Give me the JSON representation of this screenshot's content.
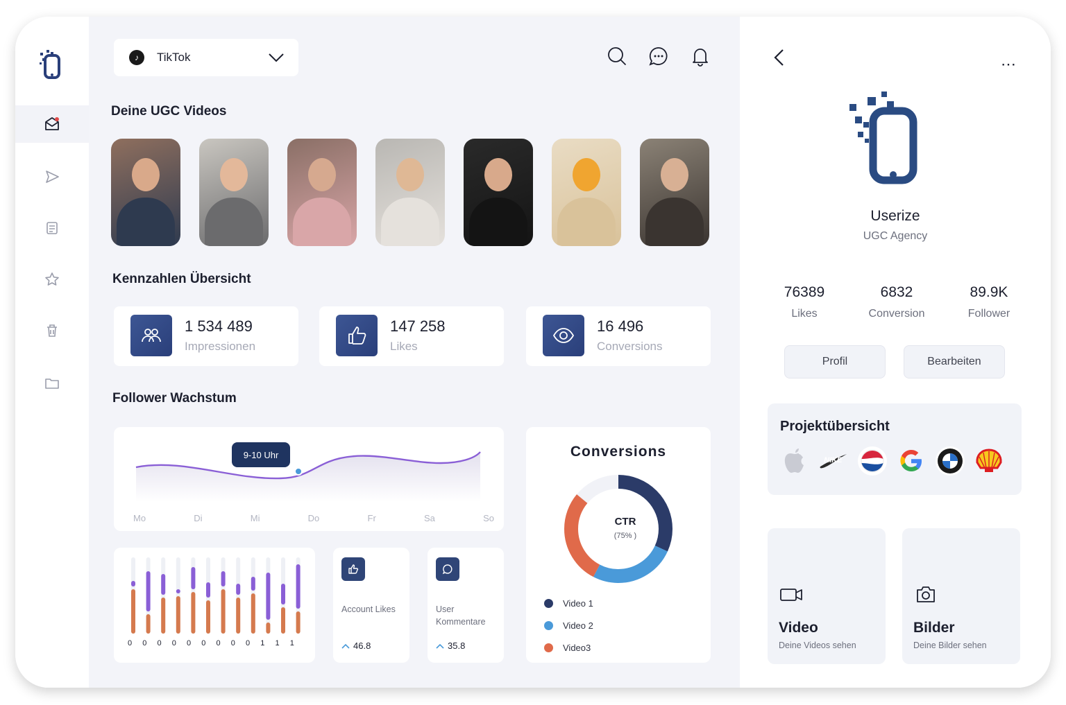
{
  "header": {
    "platform": "TikTok",
    "platform_icon": "tiktok-icon"
  },
  "sections": {
    "videos": "Deine UGC Videos",
    "kpis": "Kennzahlen Übersicht",
    "growth": "Follower Wachstum"
  },
  "thumbnails": [
    {
      "bg": "#8f6f5e",
      "skin": "#d9a98a",
      "cloth": "#2e3a4f"
    },
    {
      "bg": "#c9c6c0",
      "skin": "#e3b89a",
      "cloth": "#6b6b6d"
    },
    {
      "bg": "#8a6f66",
      "skin": "#d6a98f",
      "cloth": "#d9a6a8"
    },
    {
      "bg": "#b9b7b3",
      "skin": "#dfb895",
      "cloth": "#e5e1dc"
    },
    {
      "bg": "#2a2a2a",
      "skin": "#d8a98b",
      "cloth": "#141414"
    },
    {
      "bg": "#e9dcc4",
      "skin": "#f0a530",
      "cloth": "#d9c29a"
    },
    {
      "bg": "#8b8276",
      "skin": "#d8b094",
      "cloth": "#3a3430"
    }
  ],
  "kpis": [
    {
      "value": "1 534 489",
      "label": "Impressionen",
      "icon": "users-icon"
    },
    {
      "value": "147 258",
      "label": "Likes",
      "icon": "thumbs-up-icon"
    },
    {
      "value": "16 496",
      "label": "Conversions",
      "icon": "eye-icon"
    }
  ],
  "growth": {
    "tooltip": "9-10 Uhr",
    "days": [
      "Mo",
      "Di",
      "Mi",
      "Do",
      "Fr",
      "Sa",
      "So"
    ]
  },
  "bars": {
    "labels": [
      "0",
      "0",
      "0",
      "0",
      "0",
      "0",
      "0",
      "0",
      "0",
      "1",
      "1",
      "1"
    ]
  },
  "mini_cards": [
    {
      "label": "Account Likes",
      "value": "46.8",
      "icon": "thumbs-up-icon"
    },
    {
      "label": "User Kommentare",
      "value": "35.8",
      "icon": "comment-icon"
    }
  ],
  "conversions": {
    "title": "Conversions",
    "center_label": "CTR",
    "center_value": "(75% )",
    "legend": [
      {
        "name": "Video 1",
        "color": "#2b3b68"
      },
      {
        "name": "Video 2",
        "color": "#4a9ad9"
      },
      {
        "name": "Video3",
        "color": "#e06a4a"
      }
    ]
  },
  "chart_data": {
    "type": "pie",
    "title": "Conversions",
    "categories": [
      "Video 1",
      "Video 2",
      "Video3"
    ],
    "values": [
      37,
      30,
      33
    ]
  },
  "profile": {
    "name": "Userize",
    "subtitle": "UGC Agency",
    "stats": [
      {
        "value": "76389",
        "label": "Likes"
      },
      {
        "value": "6832",
        "label": "Conversion"
      },
      {
        "value": "89.9K",
        "label": "Follower"
      }
    ],
    "buttons": {
      "profile": "Profil",
      "edit": "Bearbeiten"
    },
    "projects_title": "Projektübersicht",
    "brands": [
      "apple-icon",
      "nike-icon",
      "pepsi-icon",
      "google-icon",
      "bmw-icon",
      "shell-icon"
    ],
    "media": [
      {
        "title": "Video",
        "subtitle": "Deine Videos sehen",
        "icon": "video-camera-icon"
      },
      {
        "title": "Bilder",
        "subtitle": "Deine Bilder sehen",
        "icon": "camera-icon"
      }
    ]
  },
  "colors": {
    "accent": "#2f4577",
    "purple": "#8a5fd6",
    "orange": "#d57a4e",
    "bg": "#f3f4f9"
  }
}
